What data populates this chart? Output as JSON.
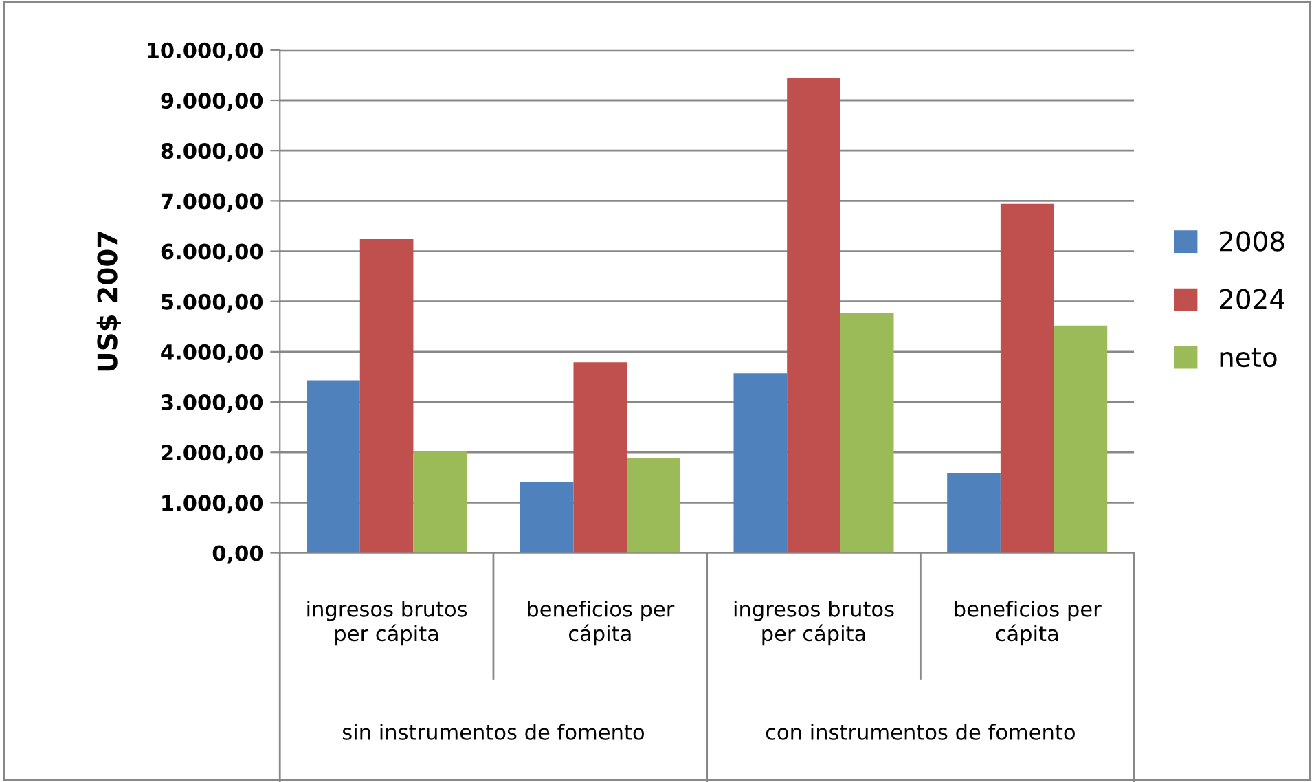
{
  "chart_data": {
    "type": "bar",
    "ylabel": "US$ 2007",
    "categories": [
      "ingresos brutos\nper cápita",
      "beneficios per\ncápita",
      "ingresos brutos\nper cápita",
      "beneficios per\ncápita"
    ],
    "series": [
      {
        "name": "2008",
        "color": "#4f81bd",
        "values": [
          3430,
          1400,
          3570,
          1580
        ]
      },
      {
        "name": "2024",
        "color": "#c0504d",
        "values": [
          6240,
          3790,
          9450,
          6940
        ]
      },
      {
        "name": "neto",
        "color": "#9bbb59",
        "values": [
          2030,
          1890,
          4770,
          4520
        ]
      }
    ],
    "ylim": [
      0,
      10000
    ],
    "yticks": [
      {
        "value": 0,
        "label": "0,00"
      },
      {
        "value": 1000,
        "label": "1.000,00"
      },
      {
        "value": 2000,
        "label": "2.000,00"
      },
      {
        "value": 3000,
        "label": "3.000,00"
      },
      {
        "value": 4000,
        "label": "4.000,00"
      },
      {
        "value": 5000,
        "label": "5.000,00"
      },
      {
        "value": 6000,
        "label": "6.000,00"
      },
      {
        "value": 7000,
        "label": "7.000,00"
      },
      {
        "value": 8000,
        "label": "8.000,00"
      },
      {
        "value": 9000,
        "label": "9.000,00"
      },
      {
        "value": 10000,
        "label": "10.000,00"
      }
    ],
    "grid": "y",
    "legend": "right",
    "annotations": [
      "sin instrumentos de fomento",
      "con instrumentos de fomento"
    ]
  }
}
